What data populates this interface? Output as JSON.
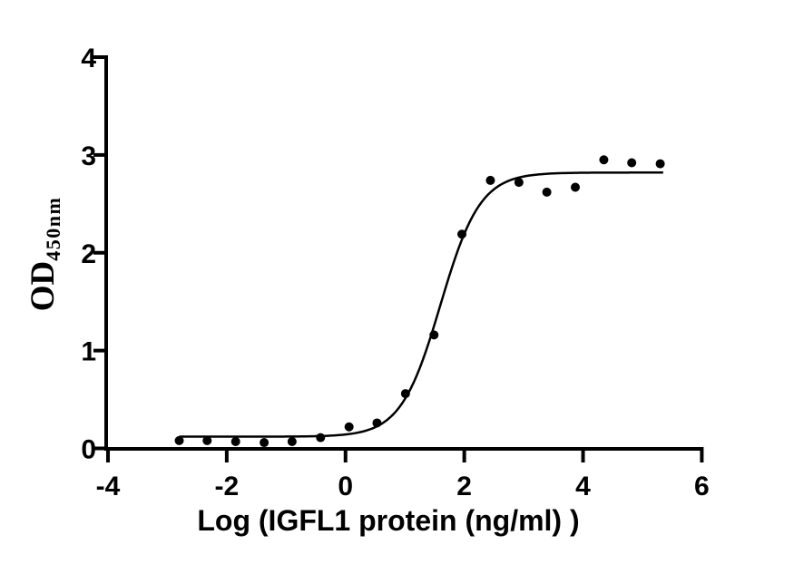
{
  "figure": {
    "background": "#ffffff",
    "ink_color": "#000000",
    "x_axis_title": "Log (IGFL1 protein (ng/ml) )",
    "y_axis_title_main": "OD",
    "y_axis_title_sub": "450nm"
  },
  "chart_data": {
    "type": "scatter",
    "title": "",
    "xlabel": "Log (IGFL1 protein (ng/ml) )",
    "ylabel": "OD450nm",
    "xlim": [
      -4,
      6
    ],
    "ylim": [
      0,
      4
    ],
    "x_ticks": [
      -4,
      -2,
      0,
      2,
      4,
      6
    ],
    "y_ticks": [
      0,
      1,
      2,
      3,
      4
    ],
    "grid": false,
    "legend": false,
    "axis_color": "#000000",
    "marker_color": "#000000",
    "line_color": "#000000",
    "marker_radius_px": 5,
    "points": {
      "x": [
        -2.8,
        -2.33,
        -1.85,
        -1.37,
        -0.9,
        -0.42,
        0.06,
        0.53,
        1.01,
        1.49,
        1.96,
        2.44,
        2.92,
        3.39,
        3.87,
        4.35,
        4.82,
        5.3
      ],
      "y": [
        0.08,
        0.08,
        0.07,
        0.06,
        0.07,
        0.11,
        0.22,
        0.26,
        0.56,
        1.16,
        2.19,
        2.74,
        2.72,
        2.62,
        2.67,
        2.95,
        2.92,
        2.91
      ]
    },
    "fit_curve": {
      "model": "4PL",
      "bottom": 0.12,
      "top": 2.82,
      "logEC50": 1.6,
      "hillslope": 1.3,
      "x_start": -2.8,
      "x_end": 5.35
    }
  }
}
